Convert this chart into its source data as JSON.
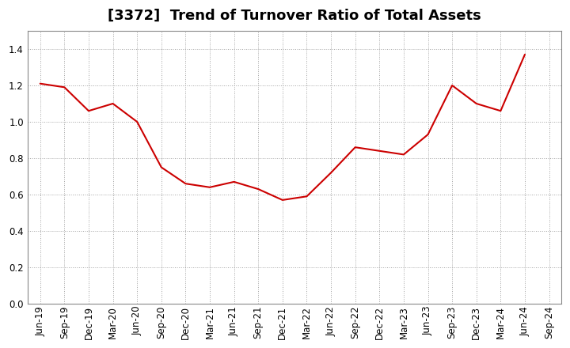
{
  "title": "[3372]  Trend of Turnover Ratio of Total Assets",
  "labels": [
    "Jun-19",
    "Sep-19",
    "Dec-19",
    "Mar-20",
    "Jun-20",
    "Sep-20",
    "Dec-20",
    "Mar-21",
    "Jun-21",
    "Sep-21",
    "Dec-21",
    "Mar-22",
    "Jun-22",
    "Sep-22",
    "Dec-22",
    "Mar-23",
    "Jun-23",
    "Sep-23",
    "Dec-23",
    "Mar-24",
    "Jun-24",
    "Sep-24"
  ],
  "values": [
    1.21,
    1.19,
    1.06,
    1.1,
    1.0,
    0.75,
    0.66,
    0.64,
    0.67,
    0.63,
    0.57,
    0.59,
    0.72,
    0.86,
    0.84,
    0.82,
    0.93,
    1.2,
    1.1,
    1.06,
    1.37,
    null
  ],
  "line_color": "#cc0000",
  "bg_color": "#ffffff",
  "plot_bg_color": "#ffffff",
  "grid_color": "#999999",
  "ylim": [
    0.0,
    1.5
  ],
  "yticks": [
    0.0,
    0.2,
    0.4,
    0.6,
    0.8,
    1.0,
    1.2,
    1.4
  ],
  "title_fontsize": 13,
  "tick_fontsize": 8.5
}
